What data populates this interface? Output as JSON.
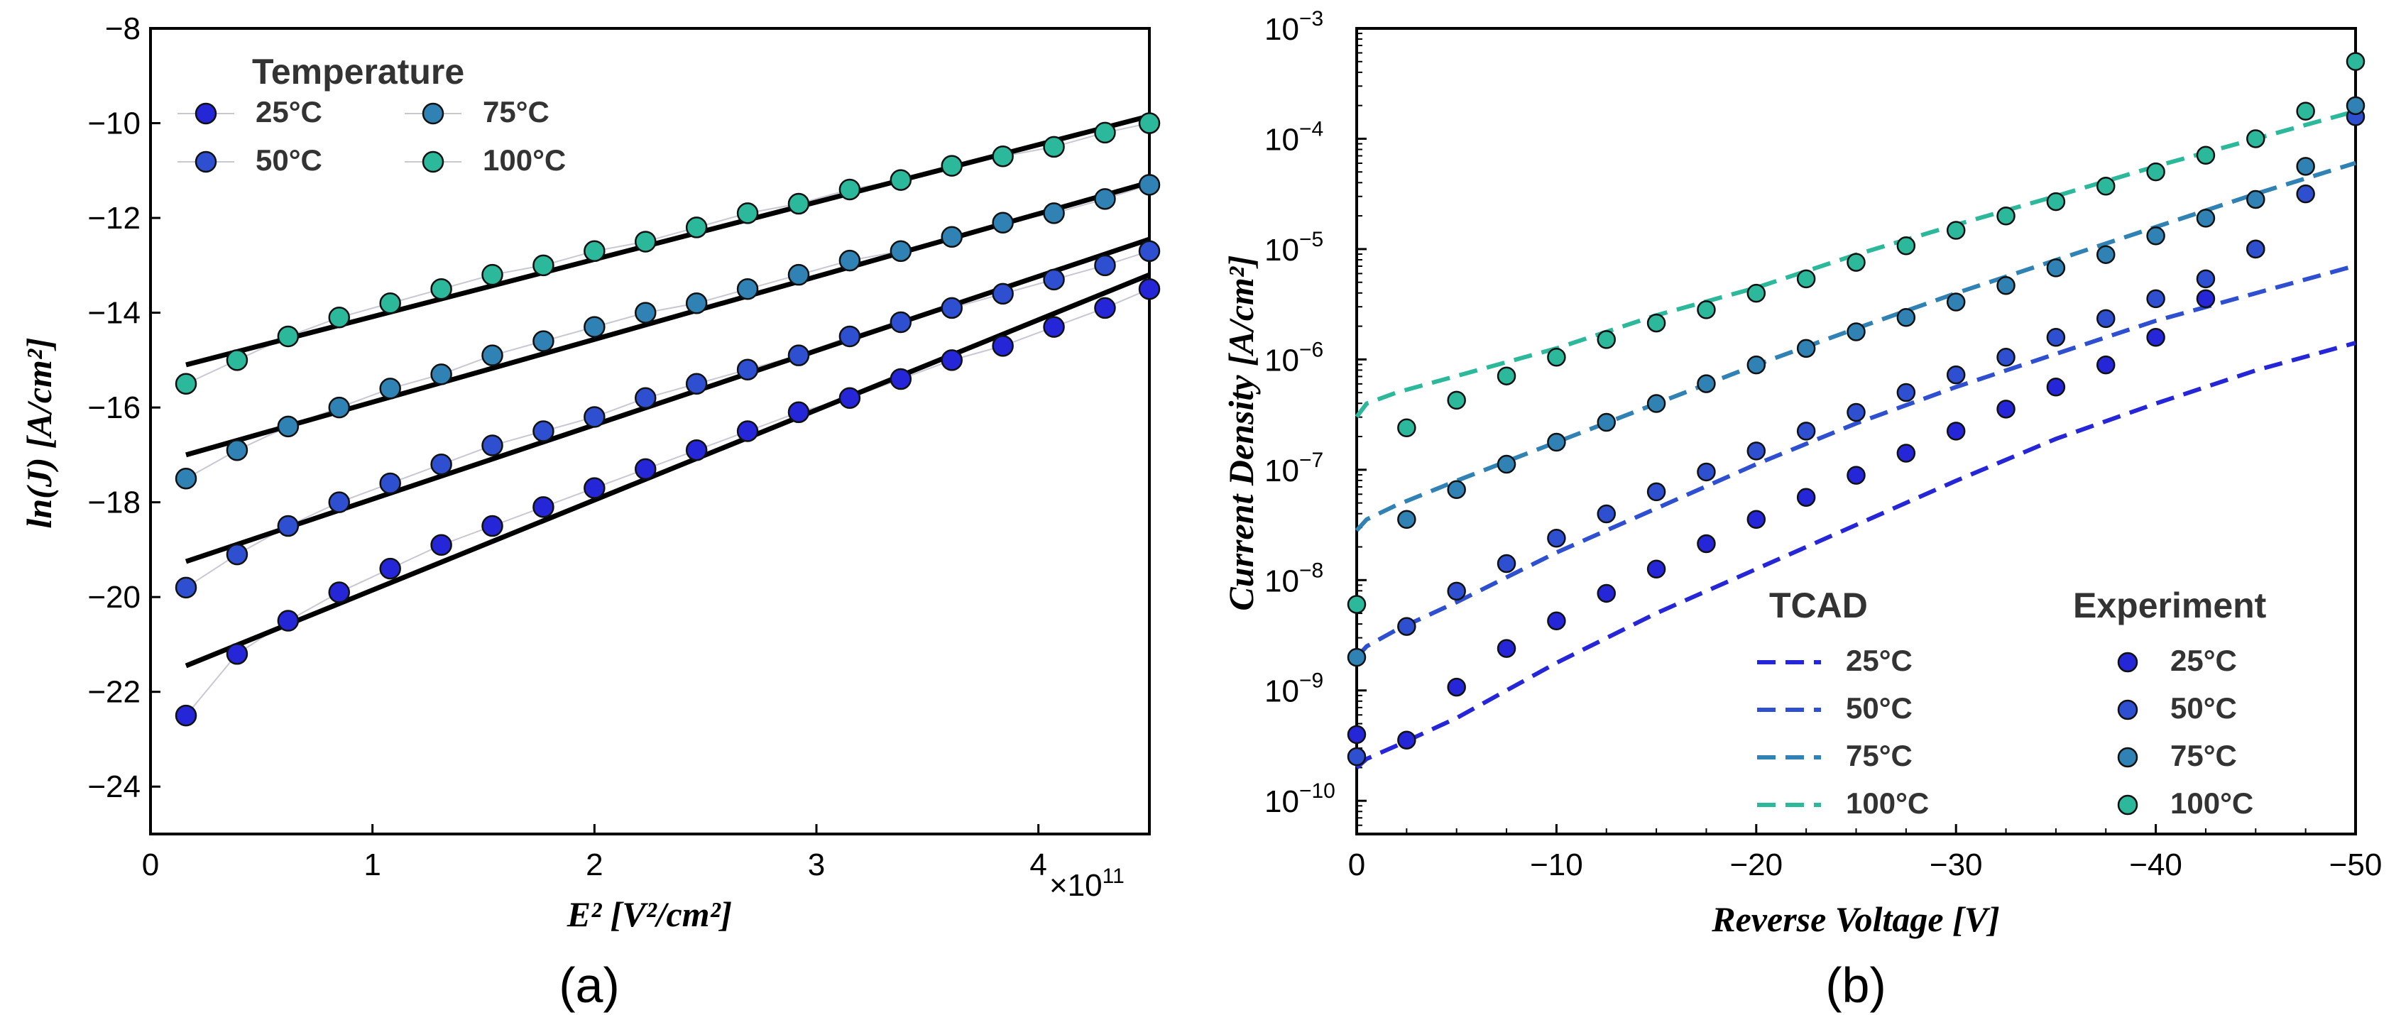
{
  "chart_data": [
    {
      "type": "scatter",
      "caption": "(a)",
      "xlabel": "E² [V²/cm²]",
      "ylabel": "ln(J) [A/cm²]",
      "x_multiplier": "×10",
      "x_multiplier_exp": "11",
      "xlim": [
        0,
        4.5
      ],
      "ylim": [
        -25,
        -8
      ],
      "xticks": [
        0,
        1,
        2,
        3,
        4
      ],
      "yticks": [
        -24,
        -22,
        -20,
        -18,
        -16,
        -14,
        -12,
        -10,
        -8
      ],
      "legend_title": "Temperature",
      "series": [
        {
          "name": "25°C",
          "color": "#2626d9",
          "x": [
            0.16,
            0.39,
            0.62,
            0.85,
            1.08,
            1.31,
            1.54,
            1.77,
            2.0,
            2.23,
            2.46,
            2.69,
            2.92,
            3.15,
            3.38,
            3.61,
            3.84,
            4.07,
            4.3,
            4.5
          ],
          "y": [
            -22.5,
            -21.2,
            -20.5,
            -19.9,
            -19.4,
            -18.9,
            -18.5,
            -18.1,
            -17.7,
            -17.3,
            -16.9,
            -16.5,
            -16.1,
            -15.8,
            -15.4,
            -15.0,
            -14.7,
            -14.3,
            -13.9,
            -13.5
          ],
          "fit": [
            -21.45,
            -13.2
          ]
        },
        {
          "name": "50°C",
          "color": "#2f4fd1",
          "x": [
            0.16,
            0.39,
            0.62,
            0.85,
            1.08,
            1.31,
            1.54,
            1.77,
            2.0,
            2.23,
            2.46,
            2.69,
            2.92,
            3.15,
            3.38,
            3.61,
            3.84,
            4.07,
            4.3,
            4.5
          ],
          "y": [
            -19.8,
            -19.1,
            -18.5,
            -18.0,
            -17.6,
            -17.2,
            -16.8,
            -16.5,
            -16.2,
            -15.8,
            -15.5,
            -15.2,
            -14.9,
            -14.5,
            -14.2,
            -13.9,
            -13.6,
            -13.3,
            -13.0,
            -12.7
          ],
          "fit": [
            -19.25,
            -12.45
          ]
        },
        {
          "name": "75°C",
          "color": "#2f82b3",
          "x": [
            0.16,
            0.39,
            0.62,
            0.85,
            1.08,
            1.31,
            1.54,
            1.77,
            2.0,
            2.23,
            2.46,
            2.69,
            2.92,
            3.15,
            3.38,
            3.61,
            3.84,
            4.07,
            4.3,
            4.5
          ],
          "y": [
            -17.5,
            -16.9,
            -16.4,
            -16.0,
            -15.6,
            -15.3,
            -14.9,
            -14.6,
            -14.3,
            -14.0,
            -13.8,
            -13.5,
            -13.2,
            -12.9,
            -12.7,
            -12.4,
            -12.1,
            -11.9,
            -11.6,
            -11.3
          ],
          "fit": [
            -17.0,
            -11.25
          ]
        },
        {
          "name": "100°C",
          "color": "#2cb89a",
          "x": [
            0.16,
            0.39,
            0.62,
            0.85,
            1.08,
            1.31,
            1.54,
            1.77,
            2.0,
            2.23,
            2.46,
            2.69,
            2.92,
            3.15,
            3.38,
            3.61,
            3.84,
            4.07,
            4.3,
            4.5
          ],
          "y": [
            -15.5,
            -15.0,
            -14.5,
            -14.1,
            -13.8,
            -13.5,
            -13.2,
            -13.0,
            -12.7,
            -12.5,
            -12.2,
            -11.9,
            -11.7,
            -11.4,
            -11.2,
            -10.9,
            -10.7,
            -10.5,
            -10.2,
            -10.0
          ],
          "fit": [
            -15.1,
            -9.85
          ]
        }
      ]
    },
    {
      "type": "scatter",
      "caption": "(b)",
      "xlabel": "Reverse Voltage [V]",
      "ylabel": "Current Density [A/cm²]",
      "yscale": "log",
      "xlim": [
        0,
        -50
      ],
      "ylim": [
        5e-11,
        0.001
      ],
      "xticks": [
        0,
        -10,
        -20,
        -30,
        -40,
        -50
      ],
      "xtick_labels": [
        "0",
        "−10",
        "−20",
        "−30",
        "−40",
        "−50"
      ],
      "ytick_exponents": [
        -10,
        -9,
        -8,
        -7,
        -6,
        -5,
        -4,
        -3
      ],
      "legend_titles": [
        "TCAD",
        "Experiment"
      ],
      "series": [
        {
          "name": "25°C",
          "color": "#2626d9",
          "tcad_v": [
            0,
            0.5,
            2,
            5,
            10,
            15,
            20,
            25,
            30,
            35,
            40,
            45,
            50
          ],
          "tcad_log_j": [
            -9.7,
            -9.62,
            -9.5,
            -9.25,
            -8.75,
            -8.3,
            -7.9,
            -7.5,
            -7.1,
            -6.72,
            -6.4,
            -6.1,
            -5.85
          ],
          "exp_v": [
            0,
            2.5,
            5,
            7.5,
            10,
            12.5,
            15,
            17.5,
            20,
            22.5,
            25,
            27.5,
            30,
            32.5,
            35,
            37.5,
            40,
            42.5,
            45
          ],
          "exp_log_j": [
            -9.4,
            -9.45,
            -8.97,
            -8.62,
            -8.37,
            -8.12,
            -7.9,
            -7.67,
            -7.45,
            -7.25,
            -7.05,
            -6.85,
            -6.65,
            -6.45,
            -6.25,
            -6.05,
            -5.8,
            -5.45,
            -5.0
          ]
        },
        {
          "name": "50°C",
          "color": "#2f4fd1",
          "tcad_v": [
            0,
            0.5,
            2,
            5,
            10,
            15,
            20,
            25,
            30,
            35,
            40,
            45,
            50
          ],
          "tcad_log_j": [
            -8.7,
            -8.6,
            -8.45,
            -8.2,
            -7.75,
            -7.35,
            -6.95,
            -6.58,
            -6.25,
            -5.95,
            -5.65,
            -5.4,
            -5.15
          ],
          "exp_v": [
            0,
            2.5,
            5,
            7.5,
            10,
            12.5,
            15,
            17.5,
            20,
            22.5,
            25,
            27.5,
            30,
            32.5,
            35,
            37.5,
            40,
            42.5,
            45,
            47.5,
            50
          ],
          "exp_log_j": [
            -9.6,
            -8.42,
            -8.1,
            -7.85,
            -7.62,
            -7.4,
            -7.2,
            -7.02,
            -6.83,
            -6.65,
            -6.48,
            -6.3,
            -6.14,
            -5.98,
            -5.8,
            -5.63,
            -5.45,
            -5.27,
            -5.0,
            -4.5,
            -3.8
          ]
        },
        {
          "name": "75°C",
          "color": "#2f82b3",
          "tcad_v": [
            0,
            0.5,
            2,
            5,
            10,
            15,
            20,
            25,
            30,
            35,
            40,
            45,
            50
          ],
          "tcad_log_j": [
            -7.55,
            -7.45,
            -7.32,
            -7.1,
            -6.75,
            -6.4,
            -6.05,
            -5.72,
            -5.4,
            -5.1,
            -4.8,
            -4.5,
            -4.22
          ],
          "exp_v": [
            0,
            2.5,
            5,
            7.5,
            10,
            12.5,
            15,
            17.5,
            20,
            22.5,
            25,
            27.5,
            30,
            32.5,
            35,
            37.5,
            40,
            42.5,
            45,
            47.5,
            50
          ],
          "exp_log_j": [
            -8.7,
            -7.45,
            -7.18,
            -6.95,
            -6.75,
            -6.57,
            -6.4,
            -6.22,
            -6.05,
            -5.9,
            -5.75,
            -5.62,
            -5.48,
            -5.33,
            -5.17,
            -5.05,
            -4.88,
            -4.72,
            -4.55,
            -4.25,
            -3.7
          ]
        },
        {
          "name": "100°C",
          "color": "#2cb89a",
          "tcad_v": [
            0,
            0.5,
            2,
            5,
            10,
            15,
            20,
            25,
            30,
            35,
            40,
            45,
            50
          ],
          "tcad_log_j": [
            -6.52,
            -6.4,
            -6.3,
            -6.15,
            -5.9,
            -5.6,
            -5.35,
            -5.05,
            -4.78,
            -4.52,
            -4.25,
            -4.0,
            -3.75
          ],
          "exp_v": [
            0,
            2.5,
            5,
            7.5,
            10,
            12.5,
            15,
            17.5,
            20,
            22.5,
            25,
            27.5,
            30,
            32.5,
            35,
            37.5,
            40,
            42.5,
            45,
            47.5,
            50
          ],
          "exp_log_j": [
            -8.22,
            -6.62,
            -6.37,
            -6.15,
            -5.98,
            -5.82,
            -5.67,
            -5.55,
            -5.4,
            -5.27,
            -5.12,
            -4.97,
            -4.83,
            -4.7,
            -4.57,
            -4.43,
            -4.3,
            -4.15,
            -4.0,
            -3.75,
            -3.3
          ]
        }
      ]
    }
  ]
}
